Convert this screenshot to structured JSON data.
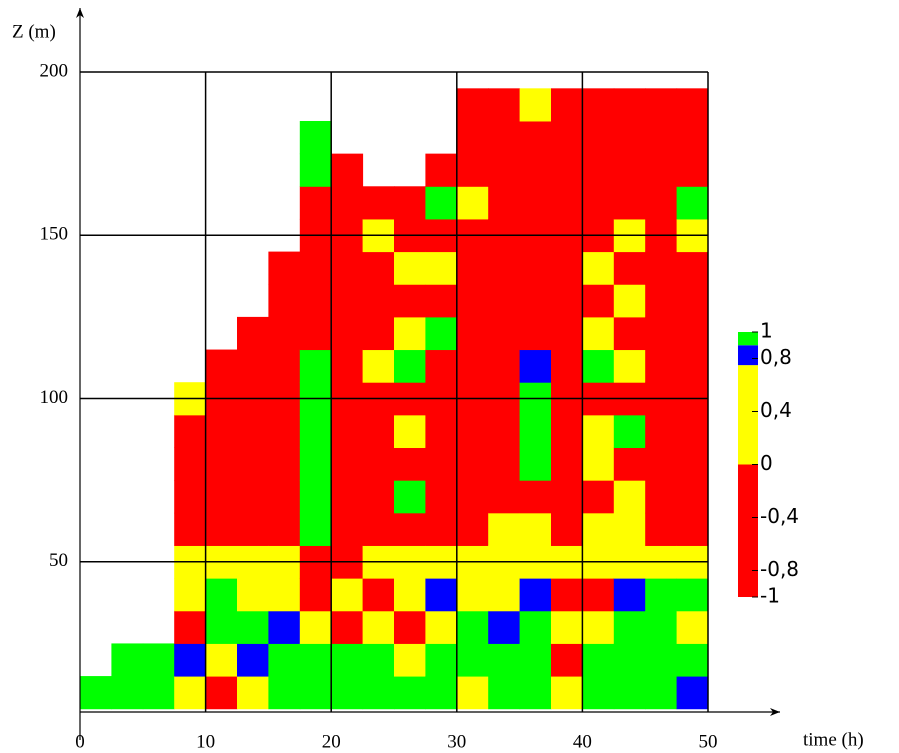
{
  "chart_data": {
    "type": "contour",
    "xlabel": "time (h)",
    "ylabel": "Z (m)",
    "xlim": [
      0,
      50
    ],
    "ylim": [
      4,
      200
    ],
    "xticks": [
      0,
      10,
      20,
      30,
      40,
      50
    ],
    "yticks": [
      50,
      100,
      150,
      200
    ],
    "grid": true,
    "x": [
      1.25,
      3.75,
      6.25,
      8.75,
      11.25,
      13.75,
      16.25,
      18.75,
      21.25,
      23.75,
      26.25,
      28.75,
      31.25,
      33.75,
      36.25,
      38.75,
      41.25,
      43.75,
      46.25,
      48.75
    ],
    "z": [
      10,
      20,
      30,
      40,
      50,
      60,
      70,
      80,
      90,
      100,
      110,
      120,
      130,
      140,
      150,
      160,
      170,
      180,
      190
    ],
    "values": [
      [
        0.95,
        null,
        null,
        null,
        null,
        null,
        null,
        null,
        null,
        null,
        null,
        null,
        null,
        null,
        null,
        null,
        null,
        null,
        null
      ],
      [
        0.95,
        0.95,
        null,
        null,
        null,
        null,
        null,
        null,
        null,
        null,
        null,
        null,
        null,
        null,
        null,
        null,
        null,
        null,
        null
      ],
      [
        0.95,
        0.95,
        null,
        null,
        null,
        null,
        null,
        null,
        null,
        null,
        null,
        null,
        null,
        null,
        null,
        null,
        null,
        null,
        null
      ],
      [
        0.4,
        0.8,
        -0.5,
        0.4,
        0.4,
        -0.5,
        -0.5,
        -0.5,
        -0.5,
        0.4,
        null,
        null,
        null,
        null,
        null,
        null,
        null,
        null,
        null
      ],
      [
        -0.5,
        0.4,
        0.95,
        0.95,
        0.4,
        -0.5,
        -0.5,
        -0.5,
        -0.5,
        -0.5,
        -0.5,
        null,
        null,
        null,
        null,
        null,
        null,
        null,
        null
      ],
      [
        0.4,
        0.8,
        0.95,
        0.4,
        0.4,
        -0.5,
        -0.5,
        -0.5,
        -0.5,
        -0.5,
        -0.5,
        -0.5,
        null,
        null,
        null,
        null,
        null,
        null,
        null
      ],
      [
        0.95,
        0.95,
        0.8,
        0.4,
        0.4,
        -0.5,
        -0.5,
        -0.5,
        -0.5,
        -0.5,
        -0.5,
        -0.5,
        -0.5,
        -0.5,
        null,
        null,
        null,
        null,
        null
      ],
      [
        0.95,
        0.95,
        0.4,
        -0.5,
        -0.5,
        0.95,
        0.95,
        0.95,
        0.95,
        0.95,
        0.95,
        -0.5,
        -0.5,
        -0.5,
        -0.5,
        -0.5,
        0.95,
        0.95,
        null
      ],
      [
        0.95,
        0.95,
        -0.5,
        0.4,
        -0.5,
        -0.5,
        -0.5,
        -0.5,
        -0.5,
        -0.5,
        -0.5,
        -0.5,
        -0.5,
        -0.5,
        -0.5,
        -0.5,
        -0.5,
        null,
        null
      ],
      [
        0.95,
        0.95,
        0.4,
        -0.5,
        0.4,
        -0.5,
        -0.5,
        -0.5,
        -0.5,
        -0.5,
        0.4,
        -0.5,
        -0.5,
        -0.5,
        0.4,
        -0.5,
        null,
        null,
        null
      ],
      [
        0.95,
        0.4,
        -0.5,
        0.4,
        0.4,
        -0.5,
        0.95,
        -0.5,
        0.4,
        -0.5,
        0.95,
        0.4,
        -0.5,
        0.4,
        -0.5,
        -0.5,
        null,
        null,
        null
      ],
      [
        0.95,
        0.95,
        0.4,
        0.8,
        0.4,
        -0.5,
        -0.5,
        -0.5,
        -0.5,
        -0.5,
        -0.5,
        0.95,
        -0.5,
        0.4,
        -0.5,
        0.95,
        -0.5,
        null,
        null
      ],
      [
        0.4,
        0.95,
        0.95,
        0.4,
        0.4,
        -0.5,
        -0.5,
        -0.5,
        -0.5,
        -0.5,
        -0.5,
        -0.5,
        -0.5,
        -0.5,
        -0.5,
        0.4,
        -0.5,
        -0.5,
        -0.5
      ],
      [
        0.95,
        0.95,
        0.8,
        0.4,
        0.4,
        0.4,
        -0.5,
        -0.5,
        -0.5,
        -0.5,
        -0.5,
        -0.5,
        -0.5,
        -0.5,
        -0.5,
        -0.5,
        -0.5,
        -0.5,
        -0.5
      ],
      [
        0.95,
        0.95,
        0.95,
        0.8,
        0.4,
        0.4,
        -0.5,
        0.95,
        0.95,
        0.95,
        0.8,
        -0.5,
        -0.5,
        -0.5,
        -0.5,
        -0.5,
        -0.5,
        -0.5,
        0.4
      ],
      [
        0.4,
        -0.5,
        0.4,
        -0.5,
        0.4,
        -0.5,
        -0.5,
        -0.5,
        -0.5,
        -0.5,
        -0.5,
        -0.5,
        -0.5,
        -0.5,
        -0.5,
        -0.5,
        -0.5,
        -0.5,
        -0.5
      ],
      [
        0.95,
        0.95,
        0.4,
        -0.5,
        0.4,
        0.4,
        -0.5,
        0.4,
        0.4,
        -0.5,
        0.95,
        0.4,
        -0.5,
        0.4,
        -0.5,
        -0.5,
        -0.5,
        -0.5,
        -0.5
      ],
      [
        0.95,
        0.95,
        0.95,
        0.8,
        0.4,
        0.4,
        0.4,
        -0.5,
        0.95,
        -0.5,
        0.4,
        -0.5,
        0.4,
        -0.5,
        0.4,
        -0.5,
        -0.5,
        -0.5,
        -0.5
      ],
      [
        0.95,
        0.95,
        0.95,
        0.95,
        0.4,
        -0.5,
        -0.5,
        -0.5,
        -0.5,
        -0.5,
        -0.5,
        -0.5,
        -0.5,
        -0.5,
        -0.5,
        -0.5,
        -0.5,
        -0.5,
        -0.5
      ],
      [
        0.8,
        0.95,
        0.4,
        0.95,
        0.4,
        -0.5,
        -0.5,
        -0.5,
        -0.5,
        -0.5,
        -0.5,
        -0.5,
        -0.5,
        -0.5,
        0.4,
        0.95,
        -0.5,
        -0.5,
        -0.5
      ]
    ],
    "colorbar": {
      "levels": [
        -1,
        0,
        0.75,
        0.9,
        1
      ],
      "colors": [
        "#ff0000",
        "#ffff00",
        "#0000ff",
        "#00ff00"
      ],
      "ticks": [
        {
          "value": 1,
          "label": "1"
        },
        {
          "value": 0.8,
          "label": "0,8"
        },
        {
          "value": 0.4,
          "label": "0,4"
        },
        {
          "value": 0,
          "label": "0"
        },
        {
          "value": -0.4,
          "label": "-0,4"
        },
        {
          "value": -0.8,
          "label": "-0,8"
        },
        {
          "value": -1,
          "label": "-1"
        }
      ]
    }
  }
}
